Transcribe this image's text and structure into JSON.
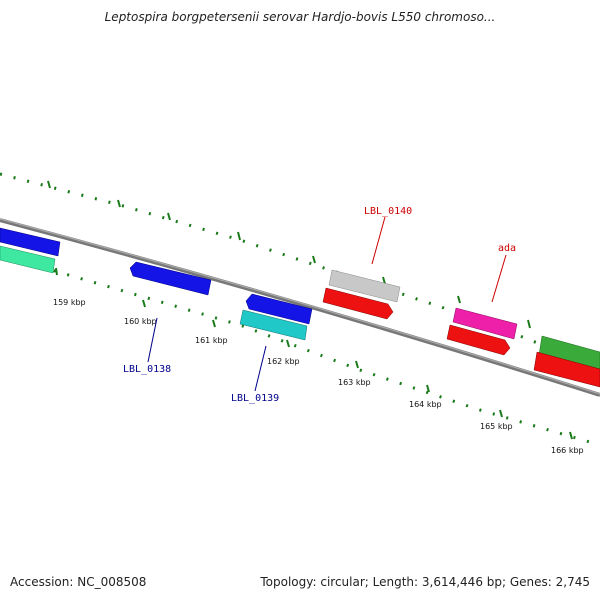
{
  "title": "Leptospira borgpetersenii serovar Hardjo-bovis L550 chromoso...",
  "footer": {
    "accession": "Accession: NC_008508",
    "summary": "Topology: circular; Length: 3,614,446 bp; Genes: 2,745"
  },
  "ticks": [
    "159 kbp",
    "160 kbp",
    "161 kbp",
    "162 kbp",
    "163 kbp",
    "164 kbp",
    "165 kbp",
    "166 kbp"
  ],
  "genes": {
    "lbl0138": "LBL_0138",
    "lbl0139": "LBL_0139",
    "lbl0140": "LBL_0140",
    "ada": "ada"
  },
  "colors": {
    "backbone": "#808080",
    "tick": "#1a7a1a",
    "forward_label": "#cc0000",
    "reverse_label": "#00008b",
    "blue": "#1414e6",
    "cyan": "#20c8c8",
    "mint": "#3ee8a0",
    "grey": "#c8c8c8",
    "red": "#ee1111",
    "magenta": "#ee1fa8",
    "green": "#3aaa3a"
  }
}
